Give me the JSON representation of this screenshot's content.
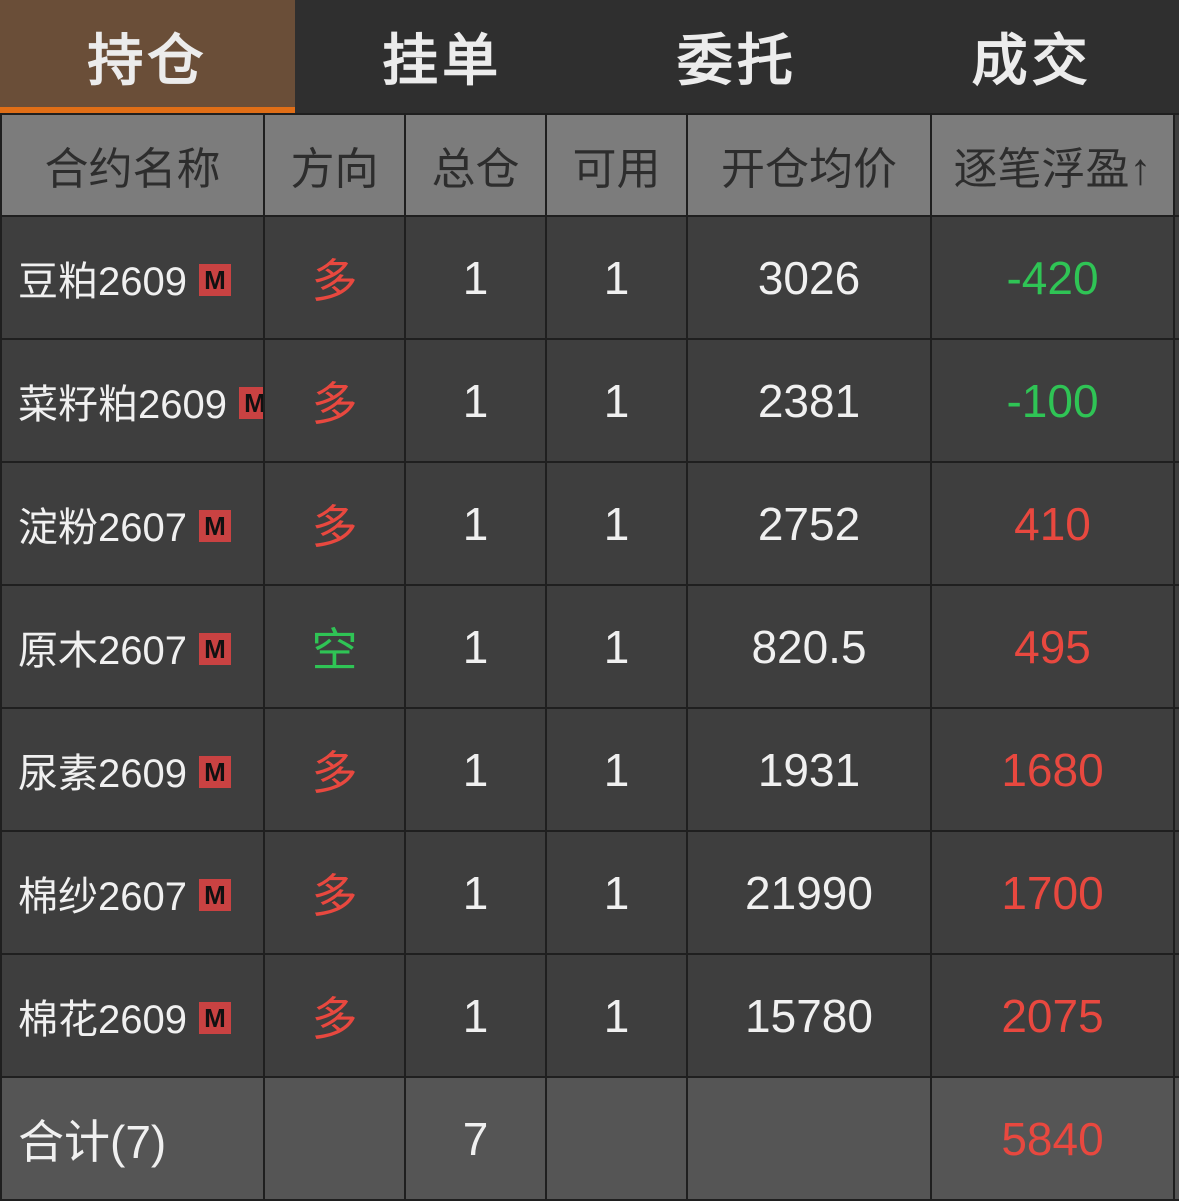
{
  "tabs": [
    "持仓",
    "挂单",
    "委托",
    "成交"
  ],
  "active_tab": 0,
  "colors": {
    "up": "#e8483f",
    "down": "#2fc455",
    "tab_accent": "#e06e17",
    "tab_active_bg": "#6a4e38"
  },
  "headers": [
    "合约名称",
    "方向",
    "总仓",
    "可用",
    "开仓均价",
    "逐笔浮盈↑"
  ],
  "badge": "M",
  "rows": [
    {
      "name": "豆粕2609",
      "dir": "多",
      "total": "1",
      "avail": "1",
      "price": "3026",
      "pnl": "-420"
    },
    {
      "name": "菜籽粕2609",
      "dir": "多",
      "total": "1",
      "avail": "1",
      "price": "2381",
      "pnl": "-100"
    },
    {
      "name": "淀粉2607",
      "dir": "多",
      "total": "1",
      "avail": "1",
      "price": "2752",
      "pnl": "410"
    },
    {
      "name": "原木2607",
      "dir": "空",
      "total": "1",
      "avail": "1",
      "price": "820.5",
      "pnl": "495"
    },
    {
      "name": "尿素2609",
      "dir": "多",
      "total": "1",
      "avail": "1",
      "price": "1931",
      "pnl": "1680"
    },
    {
      "name": "棉纱2607",
      "dir": "多",
      "total": "1",
      "avail": "1",
      "price": "21990",
      "pnl": "1700"
    },
    {
      "name": "棉花2609",
      "dir": "多",
      "total": "1",
      "avail": "1",
      "price": "15780",
      "pnl": "2075"
    }
  ],
  "total": {
    "label": "合计(7)",
    "total": "7",
    "pnl": "5840"
  }
}
